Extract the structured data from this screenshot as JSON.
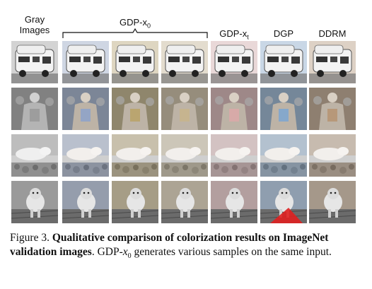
{
  "header": {
    "col_gray_line1": "Gray",
    "col_gray_line2": "Images",
    "col_gdp_x0": "GDP-x",
    "col_gdp_x0_sub": "0",
    "col_gdp_xt": "GDP-x",
    "col_gdp_xt_sub": "t",
    "col_dgp": "DGP",
    "col_ddrm": "DDRM"
  },
  "rows": [
    {
      "subject": "camper van"
    },
    {
      "subject": "ornate costume figure"
    },
    {
      "subject": "axolotl on pebbles"
    },
    {
      "subject": "dog on wooden deck"
    }
  ],
  "columns": [
    {
      "method": "gray",
      "tint": "#9a9a9a"
    },
    {
      "method": "gdp-x0-sample-1",
      "tint": "#8fa3c9"
    },
    {
      "method": "gdp-x0-sample-2",
      "tint": "#b9a36a"
    },
    {
      "method": "gdp-x0-sample-3",
      "tint": "#c7b48d"
    },
    {
      "method": "gdp-xt",
      "tint": "#d9a8a8"
    },
    {
      "method": "dgp",
      "tint": "#7fa6cf"
    },
    {
      "method": "ddrm",
      "tint": "#b69574"
    }
  ],
  "caption": {
    "figure_label": "Figure 3.",
    "bold_text": "Qualitative comparison of colorization results on ImageNet validation images",
    "rest_prefix": ". GDP-",
    "math_var": "x",
    "math_sub": "0",
    "rest_suffix": " generates various samples on the same input."
  }
}
